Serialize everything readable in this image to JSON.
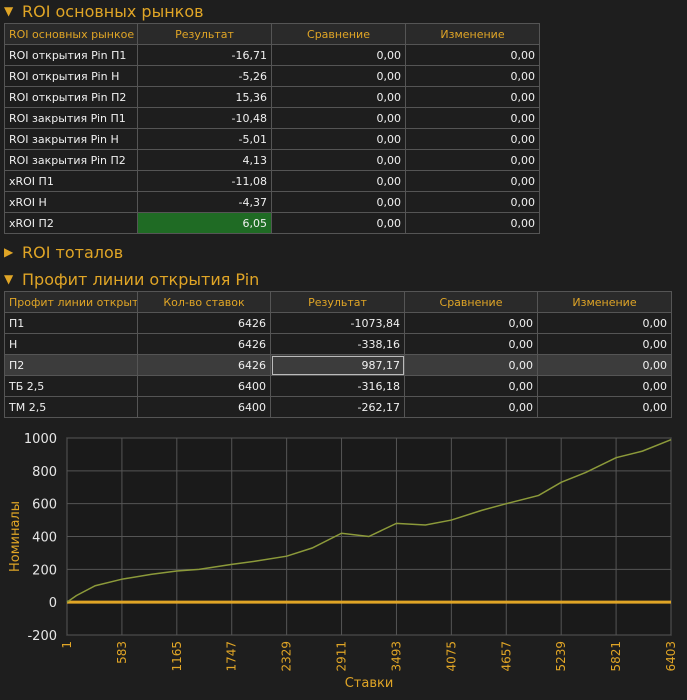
{
  "sections": {
    "roi_main": {
      "title": "ROI основных рынков",
      "columns": [
        "ROI основных рынкое",
        "Результат",
        "Сравнение",
        "Изменение"
      ],
      "rows": [
        {
          "name": "ROI открытия Pin П1",
          "result": "-16,71",
          "cmp": "0,00",
          "chg": "0,00"
        },
        {
          "name": "ROI открытия Pin Н",
          "result": "-5,26",
          "cmp": "0,00",
          "chg": "0,00"
        },
        {
          "name": "ROI открытия Pin П2",
          "result": "15,36",
          "cmp": "0,00",
          "chg": "0,00"
        },
        {
          "name": "ROI закрытия Pin П1",
          "result": "-10,48",
          "cmp": "0,00",
          "chg": "0,00"
        },
        {
          "name": "ROI закрытия Pin Н",
          "result": "-5,01",
          "cmp": "0,00",
          "chg": "0,00"
        },
        {
          "name": "ROI закрытия Pin П2",
          "result": "4,13",
          "cmp": "0,00",
          "chg": "0,00"
        },
        {
          "name": "xROI П1",
          "result": "-11,08",
          "cmp": "0,00",
          "chg": "0,00"
        },
        {
          "name": "xROI Н",
          "result": "-4,37",
          "cmp": "0,00",
          "chg": "0,00"
        },
        {
          "name": "xROI П2",
          "result": "6,05",
          "cmp": "0,00",
          "chg": "0,00"
        }
      ]
    },
    "roi_totals": {
      "title": "ROI тоталов"
    },
    "profit_line": {
      "title": "Профит линии открытия Pin",
      "columns": [
        "Профит линии открыт",
        "Кол-во ставок",
        "Результат",
        "Сравнение",
        "Изменение"
      ],
      "rows": [
        {
          "name": "П1",
          "count": "6426",
          "result": "-1073,84",
          "cmp": "0,00",
          "chg": "0,00"
        },
        {
          "name": "Н",
          "count": "6426",
          "result": "-338,16",
          "cmp": "0,00",
          "chg": "0,00"
        },
        {
          "name": "П2",
          "count": "6426",
          "result": "987,17",
          "cmp": "0,00",
          "chg": "0,00"
        },
        {
          "name": "ТБ 2,5",
          "count": "6400",
          "result": "-316,18",
          "cmp": "0,00",
          "chg": "0,00"
        },
        {
          "name": "ТМ 2,5",
          "count": "6400",
          "result": "-262,17",
          "cmp": "0,00",
          "chg": "0,00"
        }
      ]
    }
  },
  "colors": {
    "accent": "#e0a526",
    "series": "#8c9a3a",
    "zero_line": "#e0a526",
    "highlight": "#1f6b24"
  },
  "chart_data": {
    "type": "line",
    "xlabel": "Ставки",
    "ylabel": "Номиналы",
    "xlim": [
      1,
      6403
    ],
    "ylim": [
      -200,
      1000
    ],
    "x_ticks": [
      1,
      583,
      1165,
      1747,
      2329,
      2911,
      3493,
      4075,
      4657,
      5239,
      5821,
      6403
    ],
    "y_ticks": [
      -200,
      0,
      200,
      400,
      600,
      800,
      1000
    ],
    "grid": true,
    "series": [
      {
        "x": [
          1,
          100,
          300,
          583,
          900,
          1165,
          1400,
          1747,
          2000,
          2329,
          2600,
          2911,
          3200,
          3493,
          3800,
          4075,
          4400,
          4657,
          5000,
          5239,
          5500,
          5821,
          6100,
          6403
        ],
        "y": [
          0,
          40,
          100,
          140,
          170,
          190,
          200,
          230,
          250,
          280,
          330,
          420,
          400,
          480,
          470,
          500,
          560,
          600,
          650,
          730,
          790,
          880,
          920,
          990
        ]
      },
      {
        "x": [
          1,
          6403
        ],
        "y": [
          0,
          0
        ]
      }
    ]
  }
}
